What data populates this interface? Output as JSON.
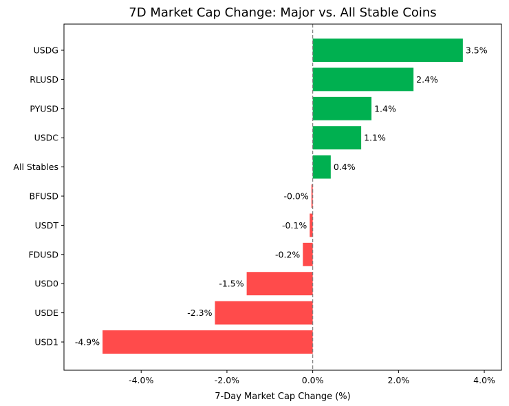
{
  "chart_data": {
    "type": "bar",
    "orientation": "horizontal",
    "title": "7D Market Cap Change: Major vs. All Stable Coins",
    "xlabel": "7-Day Market Cap Change (%)",
    "ylabel": "",
    "categories": [
      "USDG",
      "RLUSD",
      "PYUSD",
      "USDC",
      "All Stables",
      "BFUSD",
      "USDT",
      "FDUSD",
      "USD0",
      "USDE",
      "USD1"
    ],
    "values": [
      3.5,
      2.35,
      1.37,
      1.13,
      0.42,
      -0.03,
      -0.07,
      -0.23,
      -1.54,
      -2.28,
      -4.9
    ],
    "data_labels": [
      "3.5%",
      "2.4%",
      "1.4%",
      "1.1%",
      "0.4%",
      "-0.0%",
      "-0.1%",
      "-0.2%",
      "-1.5%",
      "-2.3%",
      "-4.9%"
    ],
    "xticks": [
      -4,
      -2,
      0,
      2,
      4
    ],
    "xtick_labels": [
      "-4.0%",
      "-2.0%",
      "0.0%",
      "2.0%",
      "4.0%"
    ],
    "xlim": [
      -5.8,
      4.4
    ],
    "reference_line": {
      "x": 0,
      "style": "dashed"
    },
    "grid": false,
    "legend": "none",
    "colors": {
      "positive": "#00b050",
      "negative": "#ff4b4b",
      "reference_line": "#808080"
    }
  }
}
